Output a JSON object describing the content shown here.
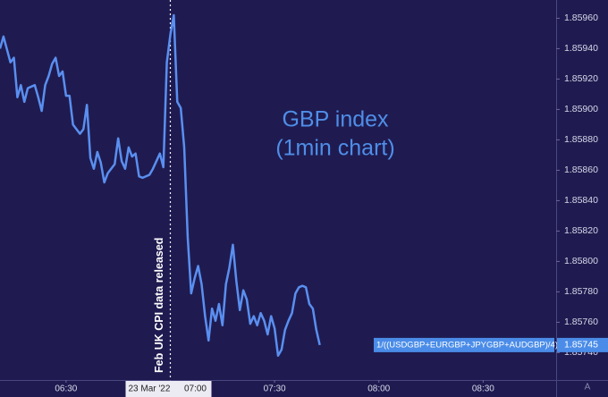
{
  "chart_data": {
    "type": "line",
    "title": "GBP index",
    "subtitle": "(1min chart)",
    "annotations": {
      "event": "Feb UK CPI data released",
      "formula": "1/((USDGBP+EURGBP+JPYGBP+AUDGBP)/4)",
      "crosshair_date": "23 Mar '22",
      "auto_button": "A"
    },
    "event_x": "07:00",
    "x": [
      "06:11",
      "06:12",
      "06:14",
      "06:15",
      "06:16",
      "06:17",
      "06:18",
      "06:19",
      "06:21",
      "06:22",
      "06:23",
      "06:24",
      "06:25",
      "06:26",
      "06:27",
      "06:28",
      "06:29",
      "06:30",
      "06:31",
      "06:32",
      "06:34",
      "06:35",
      "06:36",
      "06:37",
      "06:38",
      "06:39",
      "06:40",
      "06:41",
      "06:42",
      "06:44",
      "06:45",
      "06:46",
      "06:47",
      "06:48",
      "06:49",
      "06:50",
      "06:51",
      "06:52",
      "06:54",
      "06:55",
      "06:56",
      "06:57",
      "06:58",
      "06:59",
      "07:00",
      "07:01",
      "07:02",
      "07:03",
      "07:04",
      "07:05",
      "07:06",
      "07:07",
      "07:08",
      "07:09",
      "07:10",
      "07:11",
      "07:12",
      "07:13",
      "07:14",
      "07:15",
      "07:16",
      "07:17",
      "07:18",
      "07:19",
      "07:20",
      "07:21",
      "07:22",
      "07:23",
      "07:24",
      "07:25",
      "07:26",
      "07:27",
      "07:28",
      "07:29",
      "07:30",
      "07:31",
      "07:32",
      "07:33",
      "07:34",
      "07:35",
      "07:36",
      "07:37",
      "07:38",
      "07:39",
      "07:40",
      "07:41",
      "07:42",
      "07:43"
    ],
    "series": [
      {
        "name": "GBP index",
        "color": "#5a8ff0",
        "values": [
          1.8594,
          1.85948,
          1.85931,
          1.85934,
          1.85908,
          1.85916,
          1.85905,
          1.85914,
          1.85916,
          1.85908,
          1.85899,
          1.85916,
          1.85922,
          1.8593,
          1.85934,
          1.85922,
          1.85925,
          1.85909,
          1.85909,
          1.8589,
          1.85884,
          1.85887,
          1.85903,
          1.85868,
          1.85861,
          1.85872,
          1.85865,
          1.85852,
          1.85858,
          1.85864,
          1.85881,
          1.85866,
          1.85861,
          1.85875,
          1.85869,
          1.85871,
          1.85856,
          1.85855,
          1.85857,
          1.85861,
          1.85866,
          1.85871,
          1.85862,
          1.85931,
          1.85949,
          1.85962,
          1.85905,
          1.85901,
          1.85875,
          1.85816,
          1.85779,
          1.85789,
          1.85797,
          1.85785,
          1.85764,
          1.85748,
          1.85769,
          1.85761,
          1.85772,
          1.85758,
          1.85785,
          1.85796,
          1.85811,
          1.85787,
          1.85768,
          1.85781,
          1.85775,
          1.85759,
          1.85764,
          1.85758,
          1.85766,
          1.85761,
          1.85752,
          1.85764,
          1.85756,
          1.85738,
          1.85742,
          1.85755,
          1.85761,
          1.85766,
          1.85779,
          1.85783,
          1.85784,
          1.85783,
          1.85772,
          1.85769,
          1.85755,
          1.85745
        ]
      }
    ],
    "xlim": [
      "06:11",
      "08:51"
    ],
    "xticks": [
      "06:30",
      "07:00",
      "07:30",
      "08:00",
      "08:30"
    ],
    "ylim": [
      1.85722,
      1.85972
    ],
    "yticks": [
      {
        "value": 1.8574,
        "label": "1.85740"
      },
      {
        "value": 1.8576,
        "label": "1.85760"
      },
      {
        "value": 1.8578,
        "label": "1.85780"
      },
      {
        "value": 1.858,
        "label": "1.85800"
      },
      {
        "value": 1.8582,
        "label": "1.85820"
      },
      {
        "value": 1.8584,
        "label": "1.85840"
      },
      {
        "value": 1.8586,
        "label": "1.85860"
      },
      {
        "value": 1.8588,
        "label": "1.85880"
      },
      {
        "value": 1.859,
        "label": "1.85900"
      },
      {
        "value": 1.8592,
        "label": "1.85920"
      },
      {
        "value": 1.8594,
        "label": "1.85940"
      },
      {
        "value": 1.8596,
        "label": "1.85960"
      }
    ],
    "grid": false,
    "y_axis_side": "right"
  }
}
